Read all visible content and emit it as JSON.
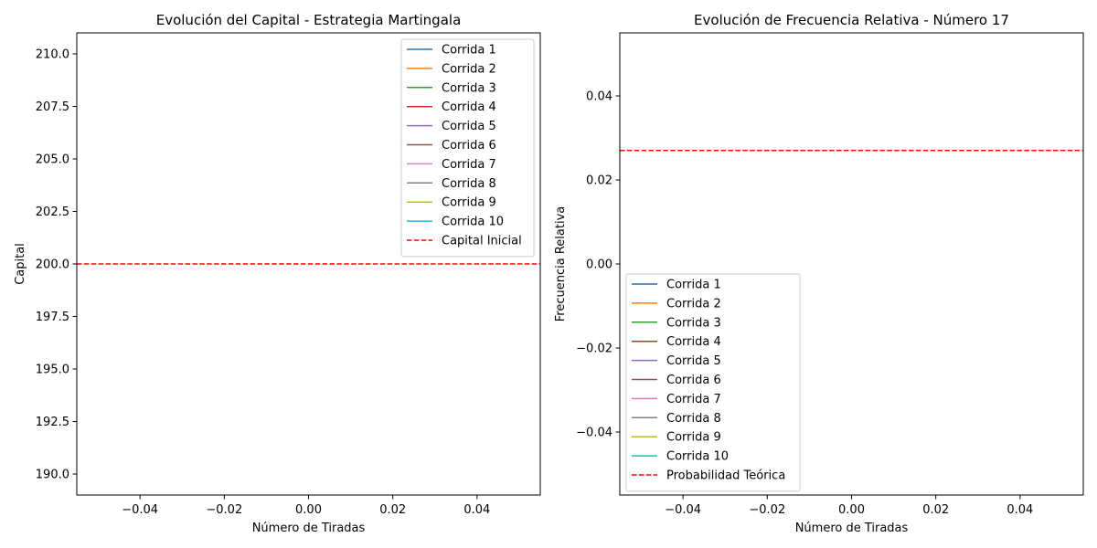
{
  "chart_data": [
    {
      "type": "line",
      "title": "Evolución del Capital - Estrategia Martingala",
      "xlabel": "Número de Tiradas",
      "ylabel": "Capital",
      "xlim": [
        -0.055,
        0.055
      ],
      "ylim": [
        189.0,
        211.0
      ],
      "xticks": [
        -0.04,
        -0.02,
        0.0,
        0.02,
        0.04
      ],
      "xtick_labels": [
        "−0.04",
        "−0.02",
        "0.00",
        "0.02",
        "0.04"
      ],
      "yticks": [
        190.0,
        192.5,
        195.0,
        197.5,
        200.0,
        202.5,
        205.0,
        207.5,
        210.0
      ],
      "ytick_labels": [
        "190.0",
        "192.5",
        "195.0",
        "197.5",
        "200.0",
        "202.5",
        "205.0",
        "207.5",
        "210.0"
      ],
      "grid": false,
      "legend_position": "top-right",
      "series": [
        {
          "name": "Corrida 1",
          "color": "#1f77b4",
          "style": "solid",
          "x": [],
          "y": []
        },
        {
          "name": "Corrida 2",
          "color": "#ff7f0e",
          "style": "solid",
          "x": [],
          "y": []
        },
        {
          "name": "Corrida 3",
          "color": "#2ca02c",
          "style": "solid",
          "x": [],
          "y": []
        },
        {
          "name": "Corrida 4",
          "color": "#d62728",
          "style": "solid",
          "x": [],
          "y": []
        },
        {
          "name": "Corrida 5",
          "color": "#9467bd",
          "style": "solid",
          "x": [],
          "y": []
        },
        {
          "name": "Corrida 6",
          "color": "#8c564b",
          "style": "solid",
          "x": [],
          "y": []
        },
        {
          "name": "Corrida 7",
          "color": "#e377c2",
          "style": "solid",
          "x": [],
          "y": []
        },
        {
          "name": "Corrida 8",
          "color": "#7f7f7f",
          "style": "solid",
          "x": [],
          "y": []
        },
        {
          "name": "Corrida 9",
          "color": "#bcbd22",
          "style": "solid",
          "x": [],
          "y": []
        },
        {
          "name": "Corrida 10",
          "color": "#17becf",
          "style": "solid",
          "x": [],
          "y": []
        }
      ],
      "hlines": [
        {
          "name": "Capital Inicial",
          "y": 200.0,
          "color": "#ff0000",
          "style": "dashed"
        }
      ]
    },
    {
      "type": "line",
      "title": "Evolución de Frecuencia Relativa - Número 17",
      "xlabel": "Número de Tiradas",
      "ylabel": "Frecuencia Relativa",
      "xlim": [
        -0.055,
        0.055
      ],
      "ylim": [
        -0.055,
        0.055
      ],
      "xticks": [
        -0.04,
        -0.02,
        0.0,
        0.02,
        0.04
      ],
      "xtick_labels": [
        "−0.04",
        "−0.02",
        "0.00",
        "0.02",
        "0.04"
      ],
      "yticks": [
        -0.04,
        -0.02,
        0.0,
        0.02,
        0.04
      ],
      "ytick_labels": [
        "−0.04",
        "−0.02",
        "0.00",
        "0.02",
        "0.04"
      ],
      "grid": false,
      "legend_position": "bottom-left",
      "series": [
        {
          "name": "Corrida 1",
          "color": "#1f77b4",
          "style": "solid",
          "x": [],
          "y": []
        },
        {
          "name": "Corrida 2",
          "color": "#ff7f0e",
          "style": "solid",
          "x": [],
          "y": []
        },
        {
          "name": "Corrida 3",
          "color": "#2ca02c",
          "style": "solid",
          "x": [],
          "y": []
        },
        {
          "name": "Corrida 4",
          "color": "#d62728",
          "style": "solid",
          "x": [],
          "y": []
        },
        {
          "name": "Corrida 5",
          "color": "#9467bd",
          "style": "solid",
          "x": [],
          "y": []
        },
        {
          "name": "Corrida 6",
          "color": "#8c564b",
          "style": "solid",
          "x": [],
          "y": []
        },
        {
          "name": "Corrida 7",
          "color": "#e377c2",
          "style": "solid",
          "x": [],
          "y": []
        },
        {
          "name": "Corrida 8",
          "color": "#7f7f7f",
          "style": "solid",
          "x": [],
          "y": []
        },
        {
          "name": "Corrida 9",
          "color": "#bcbd22",
          "style": "solid",
          "x": [],
          "y": []
        },
        {
          "name": "Corrida 10",
          "color": "#17becf",
          "style": "solid",
          "x": [],
          "y": []
        }
      ],
      "hlines": [
        {
          "name": "Probabilidad Teórica",
          "y": 0.027,
          "color": "#ff0000",
          "style": "dashed"
        }
      ]
    }
  ]
}
